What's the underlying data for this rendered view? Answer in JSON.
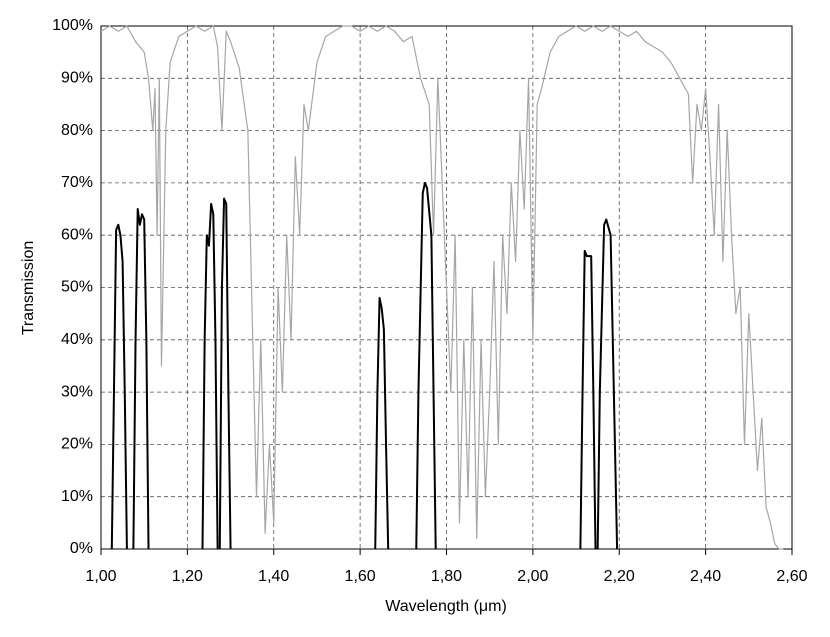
{
  "chart_data": {
    "type": "line",
    "xlabel": "Wavelength (μm)",
    "ylabel": "Transmission",
    "xlim": [
      1.0,
      2.6
    ],
    "ylim": [
      0,
      100
    ],
    "grid": true,
    "xticks": [
      {
        "value": 1.0,
        "label": "1,00"
      },
      {
        "value": 1.2,
        "label": "1,20"
      },
      {
        "value": 1.4,
        "label": "1,40"
      },
      {
        "value": 1.6,
        "label": "1,60"
      },
      {
        "value": 1.8,
        "label": "1,80"
      },
      {
        "value": 2.0,
        "label": "2,00"
      },
      {
        "value": 2.2,
        "label": "2,20"
      },
      {
        "value": 2.4,
        "label": "2,40"
      },
      {
        "value": 2.6,
        "label": "2,60"
      }
    ],
    "yticks": [
      {
        "value": 0,
        "label": "0%"
      },
      {
        "value": 10,
        "label": "10%"
      },
      {
        "value": 20,
        "label": "20%"
      },
      {
        "value": 30,
        "label": "30%"
      },
      {
        "value": 40,
        "label": "40%"
      },
      {
        "value": 50,
        "label": "50%"
      },
      {
        "value": 60,
        "label": "60%"
      },
      {
        "value": 70,
        "label": "70%"
      },
      {
        "value": 80,
        "label": "80%"
      },
      {
        "value": 90,
        "label": "90%"
      },
      {
        "value": 100,
        "label": "100%"
      }
    ],
    "series": [
      {
        "color": "#a6a6a6",
        "x": [
          1.0,
          1.02,
          1.04,
          1.06,
          1.08,
          1.1,
          1.11,
          1.12,
          1.125,
          1.13,
          1.135,
          1.14,
          1.15,
          1.16,
          1.18,
          1.2,
          1.22,
          1.24,
          1.26,
          1.27,
          1.28,
          1.29,
          1.3,
          1.32,
          1.34,
          1.35,
          1.36,
          1.37,
          1.38,
          1.39,
          1.4,
          1.41,
          1.42,
          1.43,
          1.44,
          1.45,
          1.46,
          1.47,
          1.48,
          1.5,
          1.52,
          1.54,
          1.56,
          1.58,
          1.6,
          1.62,
          1.64,
          1.66,
          1.68,
          1.7,
          1.72,
          1.74,
          1.76,
          1.77,
          1.78,
          1.79,
          1.8,
          1.81,
          1.82,
          1.83,
          1.84,
          1.85,
          1.86,
          1.87,
          1.88,
          1.89,
          1.9,
          1.91,
          1.92,
          1.93,
          1.94,
          1.95,
          1.96,
          1.97,
          1.98,
          1.99,
          2.0,
          2.01,
          2.02,
          2.04,
          2.06,
          2.08,
          2.1,
          2.12,
          2.14,
          2.16,
          2.18,
          2.2,
          2.22,
          2.24,
          2.26,
          2.28,
          2.3,
          2.32,
          2.34,
          2.36,
          2.37,
          2.38,
          2.39,
          2.4,
          2.41,
          2.42,
          2.43,
          2.44,
          2.45,
          2.46,
          2.47,
          2.48,
          2.49,
          2.5,
          2.51,
          2.52,
          2.53,
          2.54,
          2.55,
          2.56,
          2.57,
          2.58
        ],
        "values": [
          99,
          100,
          99,
          100,
          97,
          95,
          90,
          80,
          88,
          60,
          90,
          35,
          80,
          93,
          98,
          99,
          100,
          99,
          100,
          96,
          80,
          99,
          97,
          92,
          80,
          45,
          10,
          40,
          3,
          20,
          5,
          50,
          30,
          60,
          40,
          75,
          60,
          85,
          80,
          93,
          98,
          99,
          100,
          100,
          99,
          100,
          99,
          100,
          99,
          97,
          98,
          90,
          85,
          60,
          90,
          70,
          50,
          30,
          60,
          5,
          40,
          10,
          50,
          2,
          40,
          10,
          30,
          55,
          20,
          60,
          45,
          70,
          55,
          80,
          65,
          90,
          40,
          85,
          88,
          95,
          98,
          99,
          100,
          99,
          100,
          99,
          100,
          99,
          98,
          99,
          97,
          96,
          95,
          93,
          90,
          87,
          70,
          85,
          80,
          88,
          75,
          60,
          85,
          55,
          80,
          60,
          45,
          50,
          20,
          45,
          30,
          15,
          25,
          8,
          5,
          1,
          0,
          0
        ]
      },
      {
        "color": "#000000",
        "x": [
          1.025,
          1.03,
          1.035,
          1.04,
          1.045,
          1.05,
          1.055,
          1.06
        ],
        "values": [
          0,
          30,
          61,
          62,
          60,
          55,
          30,
          0
        ]
      },
      {
        "color": "#000000",
        "x": [
          1.075,
          1.08,
          1.085,
          1.09,
          1.095,
          1.1,
          1.105,
          1.11
        ],
        "values": [
          0,
          40,
          65,
          62,
          64,
          63,
          40,
          0
        ]
      },
      {
        "color": "#000000",
        "x": [
          1.235,
          1.24,
          1.245,
          1.25,
          1.255,
          1.26,
          1.265,
          1.27
        ],
        "values": [
          0,
          40,
          60,
          58,
          66,
          64,
          40,
          0
        ]
      },
      {
        "color": "#000000",
        "x": [
          1.275,
          1.28,
          1.285,
          1.29,
          1.295,
          1.3
        ],
        "values": [
          0,
          50,
          67,
          66,
          30,
          0
        ]
      },
      {
        "color": "#000000",
        "x": [
          1.635,
          1.64,
          1.645,
          1.65,
          1.655,
          1.66,
          1.665
        ],
        "values": [
          0,
          30,
          48,
          46,
          42,
          20,
          0
        ]
      },
      {
        "color": "#000000",
        "x": [
          1.73,
          1.735,
          1.745,
          1.75,
          1.755,
          1.765,
          1.77,
          1.775
        ],
        "values": [
          0,
          30,
          68,
          70,
          69,
          60,
          30,
          0
        ]
      },
      {
        "color": "#000000",
        "x": [
          2.11,
          2.115,
          2.12,
          2.125,
          2.135,
          2.14,
          2.145
        ],
        "values": [
          0,
          30,
          57,
          56,
          56,
          30,
          0
        ]
      },
      {
        "color": "#000000",
        "x": [
          2.15,
          2.155,
          2.165,
          2.17,
          2.18,
          2.185,
          2.19,
          2.195
        ],
        "values": [
          0,
          30,
          62,
          63,
          60,
          40,
          20,
          0
        ]
      }
    ]
  }
}
